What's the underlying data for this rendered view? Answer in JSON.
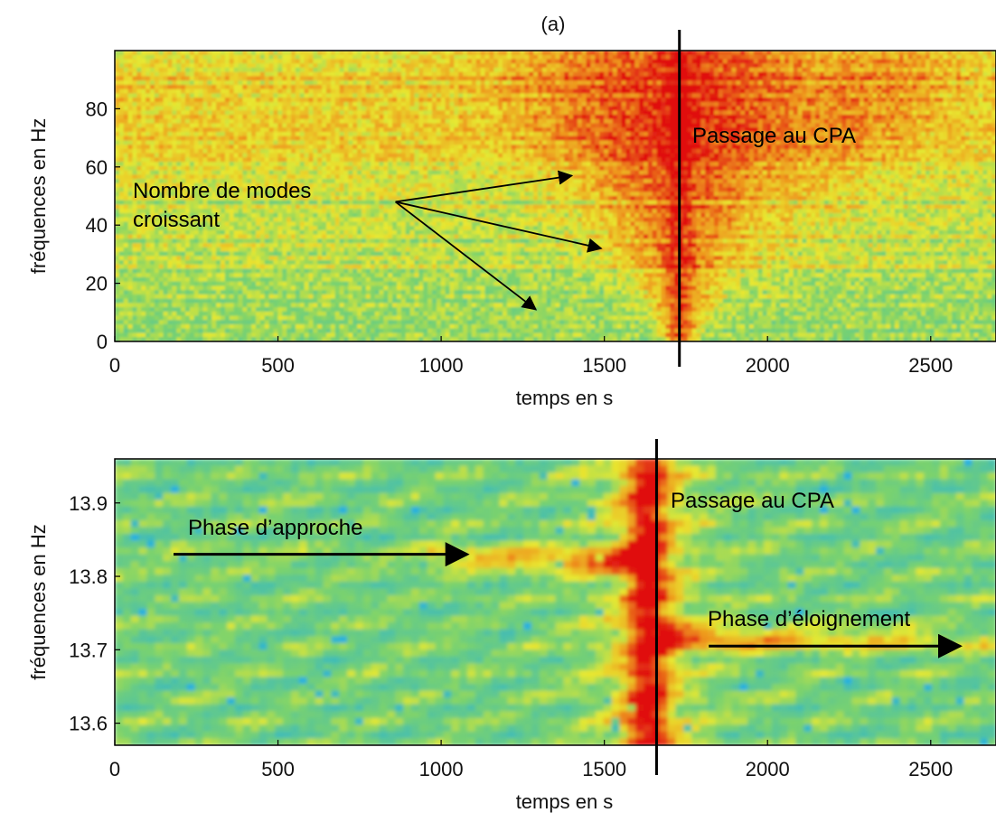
{
  "chart_data": [
    {
      "type": "heatmap",
      "panel_label": "(a)",
      "xlabel": "temps en s",
      "ylabel": "fréquences en Hz",
      "xlim": [
        0,
        2700
      ],
      "ylim": [
        0,
        100
      ],
      "x_ticks": [
        0,
        500,
        1000,
        1500,
        2000,
        2500
      ],
      "y_ticks": [
        0,
        20,
        40,
        60,
        80
      ],
      "cpa_time": 1730,
      "colors": {
        "low": "#20b0e0",
        "mid": "#e8e830",
        "high": "#e01010"
      },
      "annotations": [
        {
          "text": "Nombre de modes",
          "role": "label"
        },
        {
          "text": "croissant",
          "role": "label"
        },
        {
          "text": "Passage au CPA",
          "role": "cpa"
        }
      ],
      "arrows": [
        {
          "from": [
            860,
            48
          ],
          "to": [
            1400,
            57
          ]
        },
        {
          "from": [
            860,
            48
          ],
          "to": [
            1490,
            32
          ]
        },
        {
          "from": [
            860,
            48
          ],
          "to": [
            1290,
            11
          ]
        }
      ]
    },
    {
      "type": "heatmap",
      "xlabel": "temps en s",
      "ylabel": "fréquences en Hz",
      "xlim": [
        0,
        2700
      ],
      "ylim": [
        13.57,
        13.96
      ],
      "x_ticks": [
        0,
        500,
        1000,
        1500,
        2000,
        2500
      ],
      "y_ticks": [
        "13.6",
        "13.7",
        "13.8",
        "13.9"
      ],
      "cpa_time": 1660,
      "colors": {
        "low": "#20b0e0",
        "mid": "#e8e830",
        "high": "#e01010"
      },
      "annotations": [
        {
          "text": "Phase d’approche",
          "role": "approach"
        },
        {
          "text": "Passage au CPA",
          "role": "cpa"
        },
        {
          "text": "Phase d’éloignement",
          "role": "recede"
        }
      ],
      "arrows": [
        {
          "from": [
            180,
            13.83
          ],
          "to": [
            1080,
            13.83
          ]
        },
        {
          "from": [
            1820,
            13.705
          ],
          "to": [
            2590,
            13.705
          ]
        }
      ]
    }
  ]
}
